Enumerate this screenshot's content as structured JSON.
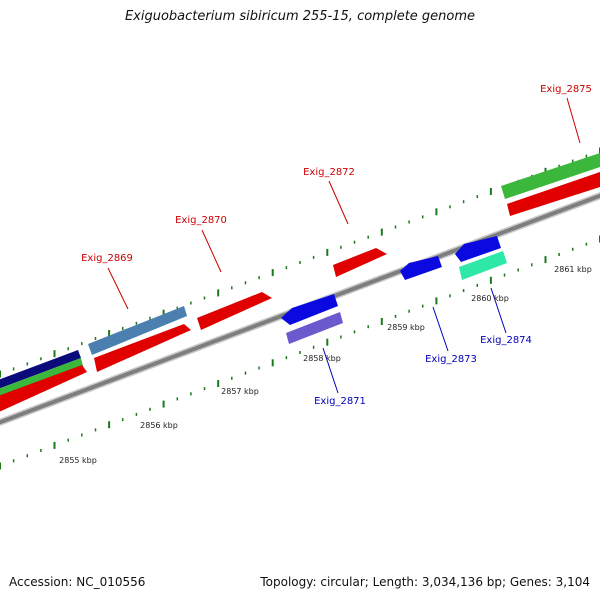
{
  "title": "Exiguobacterium sibiricum 255-15, complete genome",
  "accession": "Accession: NC_010556",
  "summary": "Topology: circular; Length: 3,034,136 bp; Genes: 3,104",
  "colors": {
    "backbone": "#8c8c8c",
    "tick": "#1a7a1a",
    "forward_label": "#cc0000",
    "reverse_label": "#0000bb"
  },
  "scale_labels": [
    "2855 kbp",
    "2856 kbp",
    "2857 kbp",
    "2858 kbp",
    "2859 kbp",
    "2860 kbp",
    "2861 kbp"
  ],
  "genes": [
    {
      "name": "Exig_2869",
      "strand": "forward"
    },
    {
      "name": "Exig_2870",
      "strand": "forward"
    },
    {
      "name": "Exig_2871",
      "strand": "reverse"
    },
    {
      "name": "Exig_2872",
      "strand": "forward"
    },
    {
      "name": "Exig_2873",
      "strand": "reverse"
    },
    {
      "name": "Exig_2874",
      "strand": "reverse"
    },
    {
      "name": "Exig_2875",
      "strand": "forward"
    }
  ]
}
